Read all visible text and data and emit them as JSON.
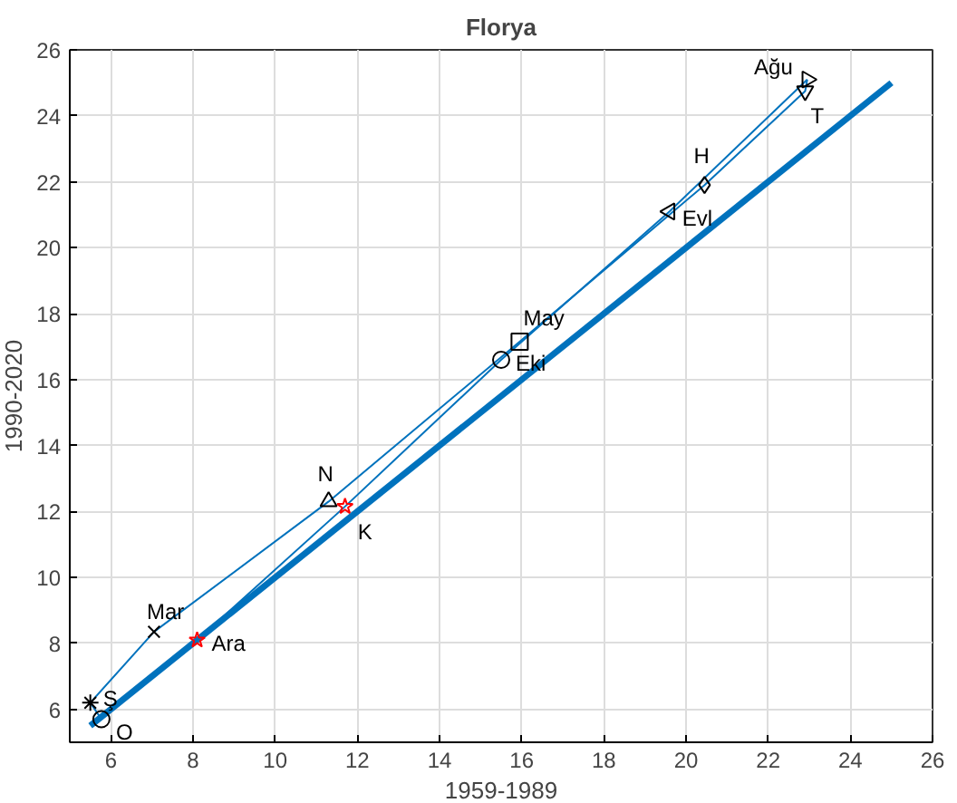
{
  "chart_data": {
    "type": "scatter",
    "title": "Florya",
    "xlabel": "1959-1989",
    "ylabel": "1990-2020",
    "xlim": [
      5,
      26
    ],
    "ylim": [
      5,
      26
    ],
    "xticks": [
      6,
      8,
      10,
      12,
      14,
      16,
      18,
      20,
      22,
      24,
      26
    ],
    "yticks": [
      6,
      8,
      10,
      12,
      14,
      16,
      18,
      20,
      22,
      24,
      26
    ],
    "grid": true,
    "series": [
      {
        "type": "line",
        "color": "#0072bd",
        "line_style": "solid",
        "x": [
          5.5,
          25
        ],
        "values": [
          5.5,
          25
        ]
      },
      {
        "type": "line",
        "color": "#0072bd",
        "line_style": "solid",
        "x": [
          5.77,
          5.5
        ],
        "values": [
          5.7,
          6.2
        ]
      },
      {
        "type": "line",
        "color": "#0072bd",
        "line_style": "solid",
        "x": [
          5.5,
          7.05,
          11.3,
          15.95,
          20.45,
          22.9,
          22.95
        ],
        "values": [
          6.2,
          8.35,
          12.3,
          17.15,
          21.9,
          24.75,
          25.1
        ]
      },
      {
        "type": "line",
        "color": "#0072bd",
        "line_style": "solid",
        "x": [
          22.95,
          19.6,
          15.5,
          11.7,
          8.1,
          5.77
        ],
        "values": [
          25.1,
          21.1,
          16.6,
          12.15,
          8.1,
          5.7
        ]
      },
      {
        "name": "O",
        "color": "#000000",
        "marker": "circle",
        "x": [
          5.77
        ],
        "values": [
          5.7
        ]
      },
      {
        "name": "Ş",
        "color": "#000000",
        "marker": "cross",
        "x": [
          5.5
        ],
        "values": [
          6.2
        ]
      },
      {
        "name": "Mar",
        "color": "#000000",
        "marker": "x",
        "x": [
          7.05
        ],
        "values": [
          8.35
        ]
      },
      {
        "name": "N",
        "color": "#000000",
        "marker": "triangle",
        "x": [
          11.3
        ],
        "values": [
          12.3
        ]
      },
      {
        "name": "May",
        "color": "#000000",
        "marker": "square",
        "x": [
          15.95
        ],
        "values": [
          17.15
        ]
      },
      {
        "name": "H",
        "color": "#000000",
        "marker": "diamond",
        "x": [
          20.45
        ],
        "values": [
          21.9
        ]
      },
      {
        "name": "T",
        "color": "#000000",
        "marker": "triangle_down",
        "x": [
          22.9
        ],
        "values": [
          24.75
        ]
      },
      {
        "name": "Ağu",
        "color": "#000000",
        "marker": "triangle_right",
        "x": [
          22.95
        ],
        "values": [
          25.1
        ]
      },
      {
        "name": "Evl",
        "color": "#000000",
        "marker": "triangle_left",
        "x": [
          19.6
        ],
        "values": [
          21.1
        ]
      },
      {
        "name": "Eki",
        "color": "#000000",
        "marker": "circle",
        "x": [
          15.5
        ],
        "values": [
          16.6
        ]
      },
      {
        "name": "K",
        "color": "#ff0000",
        "marker": "star",
        "x": [
          11.7
        ],
        "values": [
          12.15
        ]
      },
      {
        "name": "Ara",
        "color": "#ff0000",
        "marker": "star",
        "x": [
          8.1
        ],
        "values": [
          8.1
        ]
      }
    ]
  }
}
